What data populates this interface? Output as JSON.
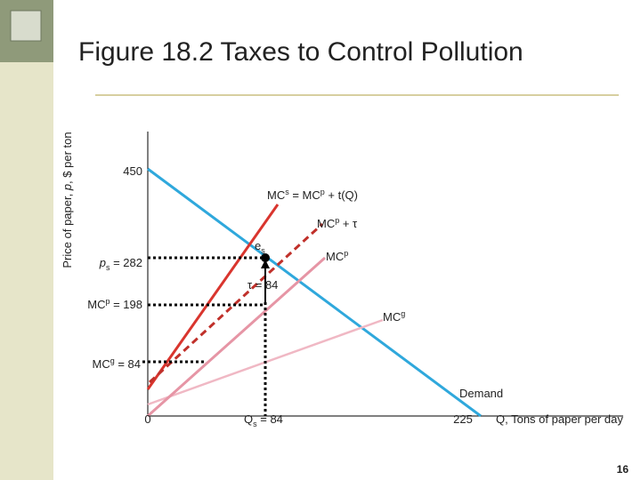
{
  "header": {
    "title": "Figure 18.2  Taxes to Control Pollution"
  },
  "graph": {
    "y_axis_label": [
      "Price of paper, ",
      "p",
      ", $ per ton"
    ],
    "x_axis_label": "Q, Tons of paper per day",
    "labels": {
      "p450": "450",
      "mcs": [
        "MC",
        "s",
        " = MC",
        "p",
        " + t(Q)"
      ],
      "mcp_tau": [
        "MC",
        "p",
        " + τ"
      ],
      "es": [
        "e",
        "s"
      ],
      "mcp": [
        "MC",
        "p"
      ],
      "ps": [
        "p",
        "s",
        " = 282"
      ],
      "tau": "τ = 84",
      "mcp198": [
        "MC",
        "p",
        " = 198"
      ],
      "mcg": [
        "MC",
        "g"
      ],
      "mcg84": [
        "MC",
        "g",
        " = 84"
      ],
      "demand": "Demand",
      "zero": "0",
      "qs": [
        "Q",
        "s",
        " = 84"
      ],
      "q225": "225"
    }
  },
  "footer": {
    "page": "16"
  }
}
